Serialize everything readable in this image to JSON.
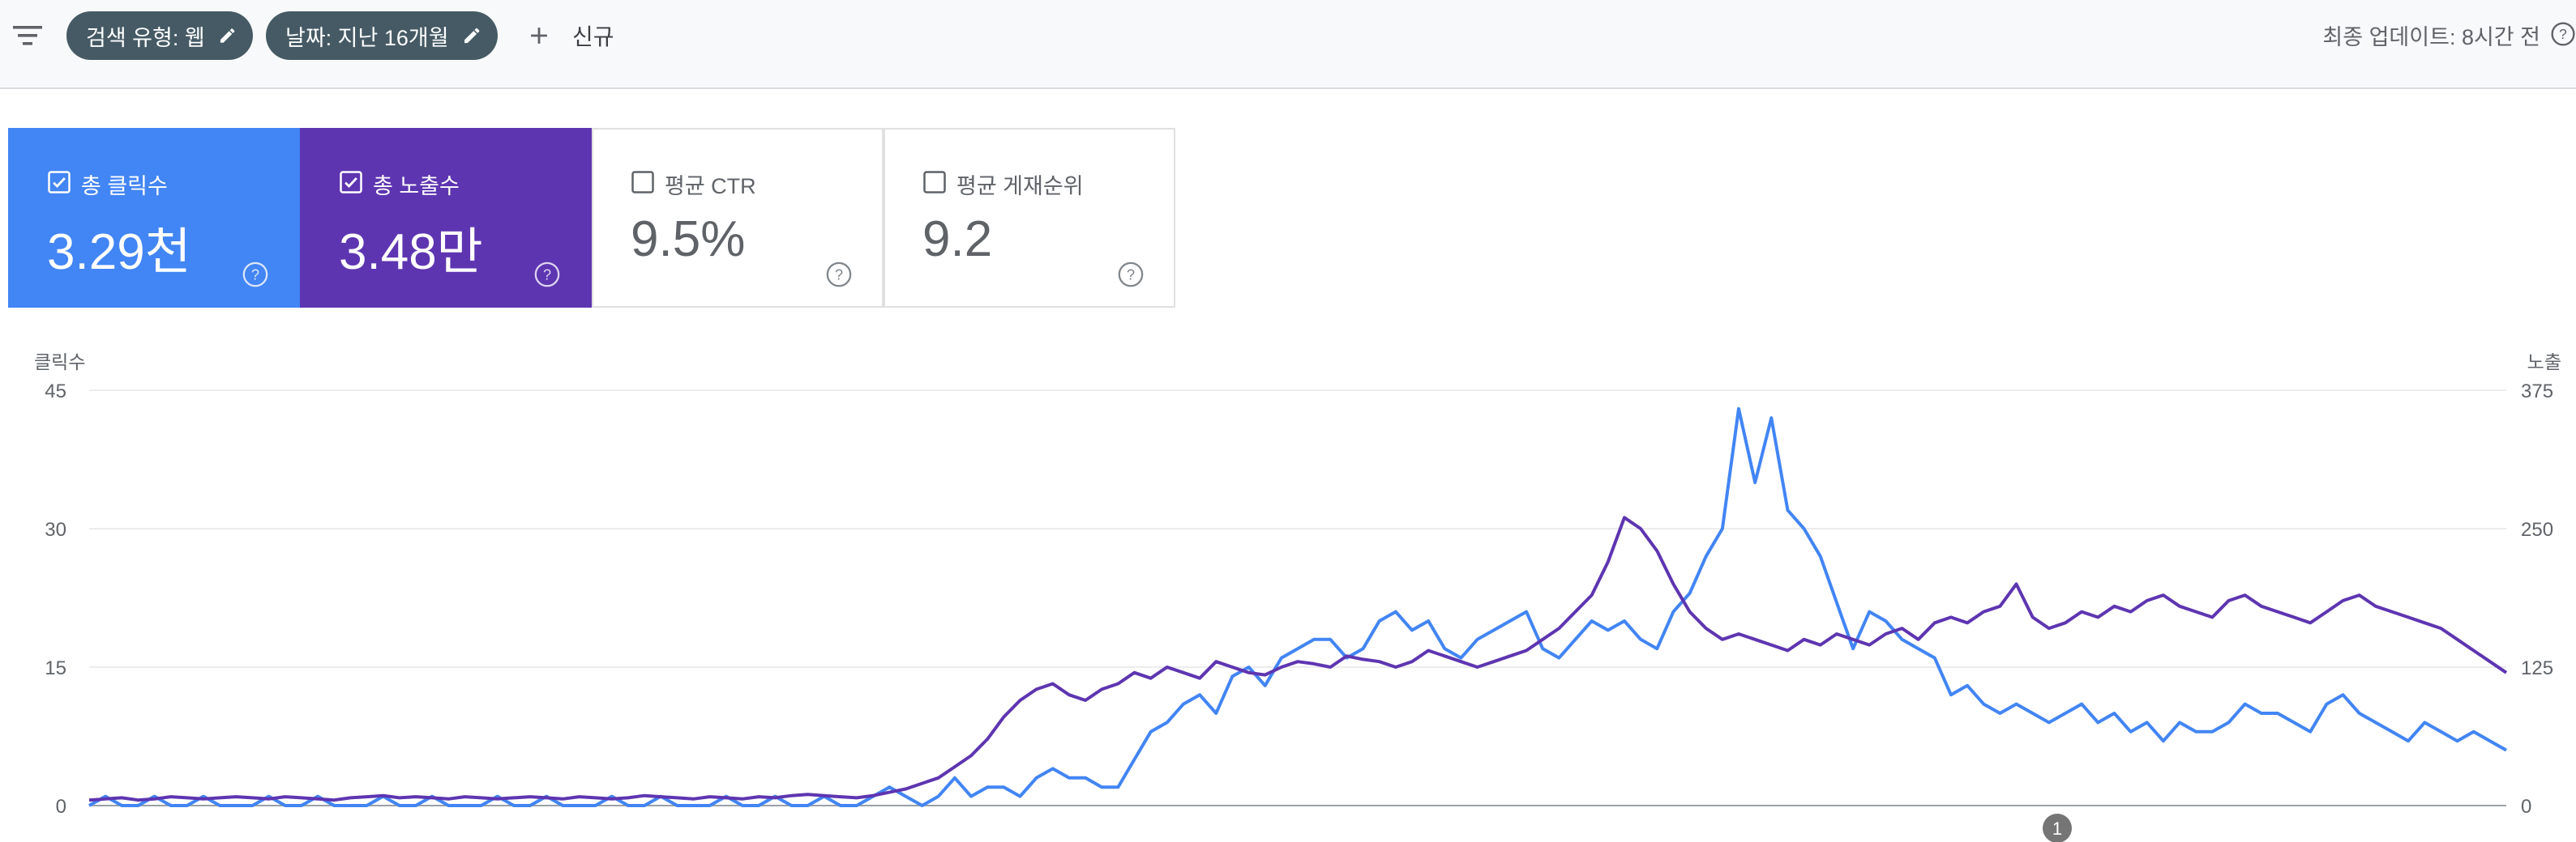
{
  "toolbar": {
    "filter_icon": "filter-list-icon",
    "chips": [
      {
        "label": "검색 유형: 웹"
      },
      {
        "label": "날짜: 지난 16개월"
      }
    ],
    "new_label": "신규",
    "last_updated": "최종 업데이트: 8시간 전"
  },
  "metrics": {
    "clicks": {
      "title": "총 클릭수",
      "value": "3.29천",
      "checked": true,
      "color": "#4285f4"
    },
    "impressions": {
      "title": "총 노출수",
      "value": "3.48만",
      "checked": true,
      "color": "#5e35b1"
    },
    "ctr": {
      "title": "평균 CTR",
      "value": "9.5%",
      "checked": false
    },
    "position": {
      "title": "평균 게재순위",
      "value": "9.2",
      "checked": false
    }
  },
  "chart": {
    "left_axis_title": "클릭수",
    "right_axis_title": "노출",
    "annotation_label": "1"
  },
  "chart_data": {
    "type": "line",
    "y_left": {
      "label": "클릭수",
      "ticks": [
        "0",
        "15",
        "30",
        "45"
      ],
      "range": [
        0,
        45
      ]
    },
    "y_right": {
      "label": "노출",
      "ticks": [
        "0",
        "125",
        "250",
        "375"
      ],
      "range": [
        0,
        375
      ]
    },
    "grid": true,
    "series": [
      {
        "name": "클릭수",
        "color": "#4285f4",
        "axis": "left",
        "values": [
          0,
          1,
          0,
          0,
          1,
          0,
          0,
          1,
          0,
          0,
          0,
          1,
          0,
          0,
          1,
          0,
          0,
          0,
          1,
          0,
          0,
          1,
          0,
          0,
          0,
          1,
          0,
          0,
          1,
          0,
          0,
          0,
          1,
          0,
          0,
          1,
          0,
          0,
          0,
          1,
          0,
          0,
          1,
          0,
          0,
          1,
          0,
          0,
          1,
          2,
          1,
          0,
          1,
          3,
          1,
          2,
          2,
          1,
          3,
          4,
          3,
          3,
          2,
          2,
          5,
          8,
          9,
          11,
          12,
          10,
          14,
          15,
          13,
          16,
          17,
          18,
          18,
          16,
          17,
          20,
          21,
          19,
          20,
          17,
          16,
          18,
          19,
          20,
          21,
          17,
          16,
          18,
          20,
          19,
          20,
          18,
          17,
          21,
          23,
          27,
          30,
          43,
          35,
          42,
          32,
          30,
          27,
          22,
          17,
          21,
          20,
          18,
          17,
          16,
          12,
          13,
          11,
          10,
          11,
          10,
          9,
          10,
          11,
          9,
          10,
          8,
          9,
          7,
          9,
          8,
          8,
          9,
          11,
          10,
          10,
          9,
          8,
          11,
          12,
          10,
          9,
          8,
          7,
          9,
          8,
          7,
          8,
          7,
          6
        ]
      },
      {
        "name": "노출",
        "color": "#5e35b1",
        "axis": "right",
        "values": [
          5,
          6,
          7,
          5,
          6,
          8,
          7,
          6,
          7,
          8,
          7,
          6,
          8,
          7,
          6,
          5,
          7,
          8,
          9,
          7,
          8,
          7,
          6,
          8,
          7,
          6,
          7,
          8,
          7,
          6,
          8,
          7,
          6,
          7,
          9,
          8,
          7,
          6,
          8,
          7,
          6,
          8,
          7,
          9,
          10,
          9,
          8,
          7,
          9,
          12,
          15,
          20,
          25,
          35,
          45,
          60,
          80,
          95,
          105,
          110,
          100,
          95,
          105,
          110,
          120,
          115,
          125,
          120,
          115,
          130,
          125,
          120,
          118,
          125,
          130,
          128,
          125,
          135,
          132,
          130,
          125,
          130,
          140,
          135,
          130,
          125,
          130,
          135,
          140,
          150,
          160,
          175,
          190,
          220,
          260,
          250,
          230,
          200,
          175,
          160,
          150,
          155,
          150,
          145,
          140,
          150,
          145,
          155,
          150,
          145,
          155,
          160,
          150,
          165,
          170,
          165,
          175,
          180,
          200,
          170,
          160,
          165,
          175,
          170,
          180,
          175,
          185,
          190,
          180,
          175,
          170,
          185,
          190,
          180,
          175,
          170,
          165,
          175,
          185,
          190,
          180,
          175,
          170,
          165,
          160,
          150,
          140,
          130,
          120
        ]
      }
    ],
    "annotation": {
      "label": "1"
    }
  }
}
